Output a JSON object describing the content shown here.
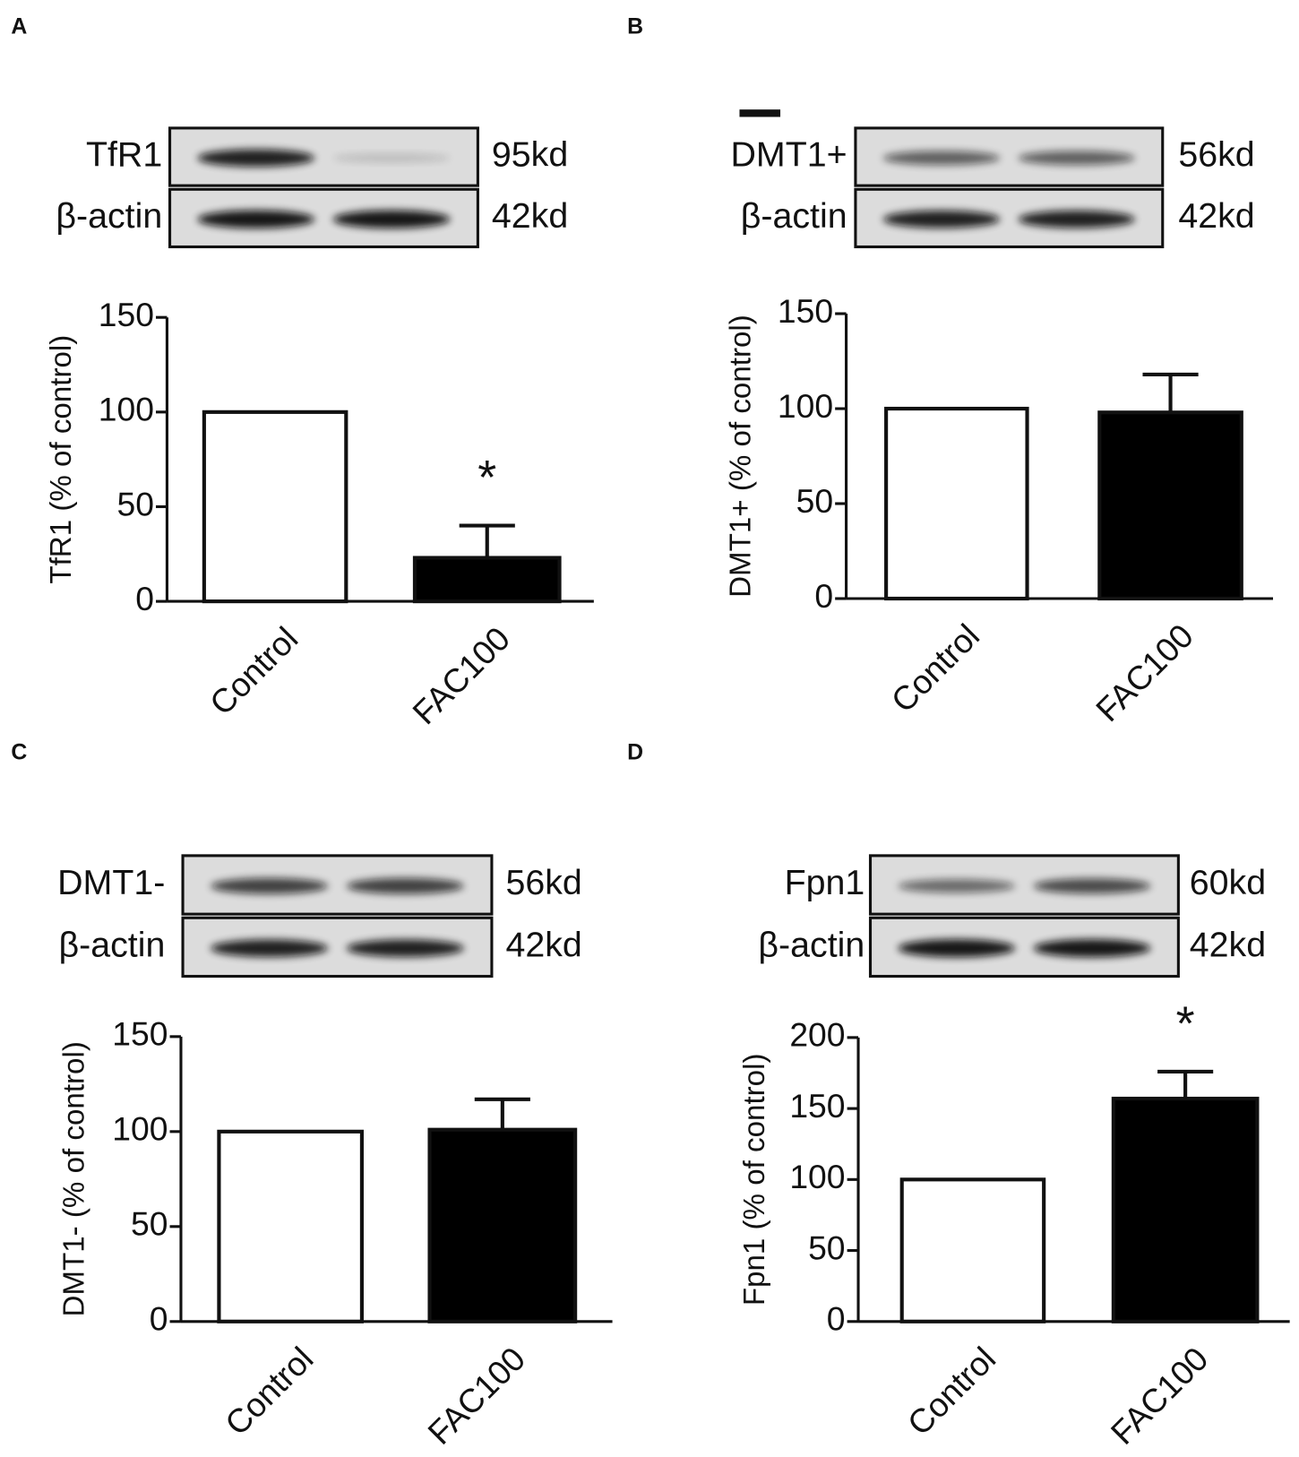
{
  "chart_data": [
    {
      "type": "bar",
      "panel": "A",
      "ylabel": "TfR1 (% of control)",
      "blot": [
        {
          "label": "TfR1",
          "size": "95kd"
        },
        {
          "label": "β-actin",
          "size": "42kd"
        }
      ],
      "categories": [
        "Control",
        "FAC100"
      ],
      "values": [
        100,
        23
      ],
      "errors": [
        null,
        17
      ],
      "colors": [
        "#ffffff",
        "#000000"
      ],
      "significance": [
        null,
        "*"
      ],
      "ylim": [
        0,
        150
      ],
      "yticks": [
        0,
        50,
        100,
        150
      ]
    },
    {
      "type": "bar",
      "panel": "B",
      "ylabel": "DMT1+ (% of control)",
      "blot": [
        {
          "label": "DMT1+",
          "size": "56kd"
        },
        {
          "label": "β-actin",
          "size": "42kd"
        }
      ],
      "categories": [
        "Control",
        "FAC100"
      ],
      "values": [
        100,
        98
      ],
      "errors": [
        null,
        20
      ],
      "colors": [
        "#ffffff",
        "#000000"
      ],
      "significance": [
        null,
        null
      ],
      "ylim": [
        0,
        150
      ],
      "yticks": [
        0,
        50,
        100,
        150
      ]
    },
    {
      "type": "bar",
      "panel": "C",
      "ylabel": "DMT1- (% of control)",
      "blot": [
        {
          "label": "DMT1-",
          "size": "56kd"
        },
        {
          "label": "β-actin",
          "size": "42kd"
        }
      ],
      "categories": [
        "Control",
        "FAC100"
      ],
      "values": [
        100,
        101
      ],
      "errors": [
        null,
        16
      ],
      "colors": [
        "#ffffff",
        "#000000"
      ],
      "significance": [
        null,
        null
      ],
      "ylim": [
        0,
        150
      ],
      "yticks": [
        0,
        50,
        100,
        150
      ]
    },
    {
      "type": "bar",
      "panel": "D",
      "ylabel": "Fpn1 (% of control)",
      "blot": [
        {
          "label": "Fpn1",
          "size": "60kd"
        },
        {
          "label": "β-actin",
          "size": "42kd"
        }
      ],
      "categories": [
        "Control",
        "FAC100"
      ],
      "values": [
        100,
        157
      ],
      "errors": [
        null,
        19
      ],
      "colors": [
        "#ffffff",
        "#000000"
      ],
      "significance": [
        null,
        "*"
      ],
      "ylim": [
        0,
        200
      ],
      "yticks": [
        0,
        50,
        100,
        150,
        200
      ]
    }
  ]
}
